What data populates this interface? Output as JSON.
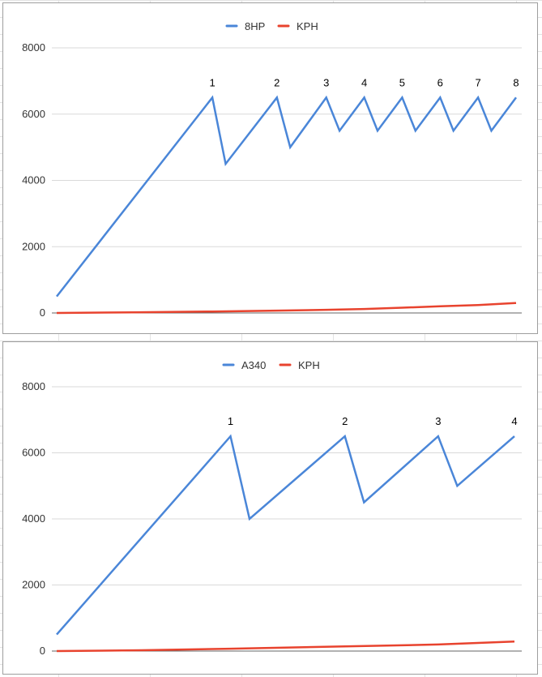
{
  "colors": {
    "rpm_series": "#4a86d8",
    "kph_series": "#e8432e",
    "gridline": "#d9d9d9",
    "axis": "#666666"
  },
  "chart_data": [
    {
      "type": "line",
      "title": "",
      "legend_position": "top",
      "grid": true,
      "ylim": [
        0,
        8000
      ],
      "yticks": [
        "0",
        "2000",
        "4000",
        "6000",
        "8000"
      ],
      "series": [
        {
          "name": "8HP",
          "points": [
            [
              0,
              500
            ],
            [
              41,
              6500
            ],
            [
              44.5,
              4500
            ],
            [
              58,
              6500
            ],
            [
              61.5,
              5000
            ],
            [
              71,
              6500
            ],
            [
              74.5,
              5500
            ],
            [
              81,
              6500
            ],
            [
              84.5,
              5500
            ],
            [
              91,
              6500
            ],
            [
              94.5,
              5500
            ],
            [
              101,
              6500
            ],
            [
              104.5,
              5500
            ],
            [
              111,
              6500
            ],
            [
              114.5,
              5500
            ],
            [
              121,
              6500
            ]
          ]
        },
        {
          "name": "KPH",
          "points": [
            [
              0,
              0
            ],
            [
              20,
              20
            ],
            [
              41,
              45
            ],
            [
              58,
              70
            ],
            [
              71,
              95
            ],
            [
              81,
              120
            ],
            [
              91,
              160
            ],
            [
              101,
              200
            ],
            [
              111,
              240
            ],
            [
              121,
              300
            ]
          ]
        }
      ],
      "annotations": [
        {
          "text": "1",
          "x": 41,
          "y": 6500
        },
        {
          "text": "2",
          "x": 58,
          "y": 6500
        },
        {
          "text": "3",
          "x": 71,
          "y": 6500
        },
        {
          "text": "4",
          "x": 81,
          "y": 6500
        },
        {
          "text": "5",
          "x": 91,
          "y": 6500
        },
        {
          "text": "6",
          "x": 101,
          "y": 6500
        },
        {
          "text": "7",
          "x": 111,
          "y": 6500
        },
        {
          "text": "8",
          "x": 121,
          "y": 6500
        }
      ]
    },
    {
      "type": "line",
      "title": "",
      "legend_position": "top",
      "grid": true,
      "ylim": [
        0,
        8000
      ],
      "yticks": [
        "0",
        "2000",
        "4000",
        "6000",
        "8000"
      ],
      "series": [
        {
          "name": "A340",
          "points": [
            [
              0,
              500
            ],
            [
              41,
              6500
            ],
            [
              45.5,
              4000
            ],
            [
              68,
              6500
            ],
            [
              72.5,
              4500
            ],
            [
              90,
              6500
            ],
            [
              94.5,
              5000
            ],
            [
              108,
              6500
            ]
          ]
        },
        {
          "name": "KPH",
          "points": [
            [
              0,
              0
            ],
            [
              20,
              25
            ],
            [
              41,
              70
            ],
            [
              68,
              140
            ],
            [
              90,
              200
            ],
            [
              108,
              290
            ]
          ]
        }
      ],
      "annotations": [
        {
          "text": "1",
          "x": 41,
          "y": 6500
        },
        {
          "text": "2",
          "x": 68,
          "y": 6500
        },
        {
          "text": "3",
          "x": 90,
          "y": 6500
        },
        {
          "text": "4",
          "x": 108,
          "y": 6500
        }
      ]
    }
  ]
}
